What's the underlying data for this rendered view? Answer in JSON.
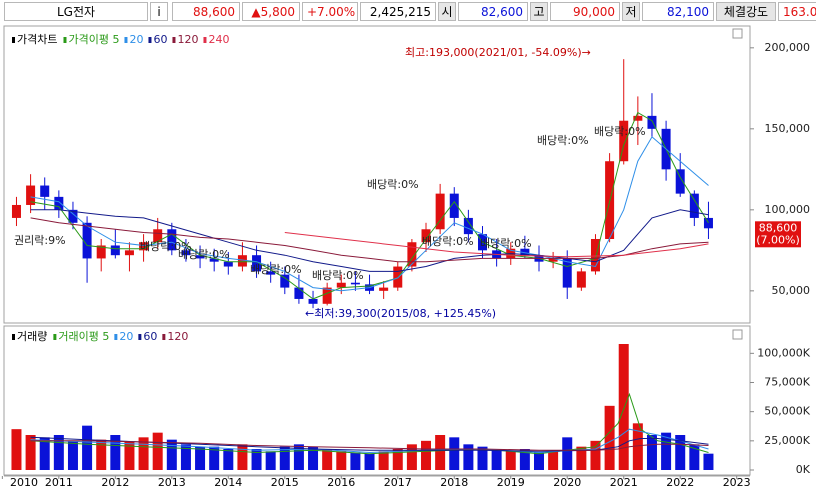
{
  "header": {
    "items": [
      "LG전자",
      "i",
      "88,600",
      "▲5,800",
      "+7.00%",
      "2,425,215",
      "시",
      "82,600",
      "고",
      "90,000",
      "저",
      "82,100",
      "체결강도",
      "163.0"
    ]
  },
  "chart_data": [
    {
      "type": "candlestick",
      "title": "가격차트",
      "up_color": "#e01010",
      "down_color": "#0a12d8",
      "xlim": [
        2010.1,
        2023.2
      ],
      "xticks": [
        2010,
        2011,
        2012,
        2013,
        2014,
        2015,
        2016,
        2017,
        2018,
        2019,
        2020,
        2021,
        2022,
        2023
      ],
      "ylim": [
        32000,
        211000
      ],
      "yticks": [
        {
          "value": 50000,
          "label": "50,000"
        },
        {
          "value": 100000,
          "label": "100,000"
        },
        {
          "value": 150000,
          "label": "150,000"
        },
        {
          "value": 200000,
          "label": "200,000"
        }
      ],
      "grid": false,
      "x": [
        2010.25,
        2010.5,
        2010.75,
        2011.0,
        2011.25,
        2011.5,
        2011.75,
        2012.0,
        2012.25,
        2012.5,
        2012.75,
        2013.0,
        2013.25,
        2013.5,
        2013.75,
        2014.0,
        2014.25,
        2014.5,
        2014.75,
        2015.0,
        2015.25,
        2015.5,
        2015.75,
        2016.0,
        2016.25,
        2016.5,
        2016.75,
        2017.0,
        2017.25,
        2017.5,
        2017.75,
        2018.0,
        2018.25,
        2018.5,
        2018.75,
        2019.0,
        2019.25,
        2019.5,
        2019.75,
        2020.0,
        2020.25,
        2020.5,
        2020.75,
        2021.0,
        2021.25,
        2021.5,
        2021.75,
        2022.0,
        2022.25,
        2022.5
      ],
      "open": [
        95000,
        103000,
        115000,
        108000,
        100000,
        92000,
        70000,
        78000,
        72000,
        75000,
        80000,
        88000,
        75000,
        72000,
        70000,
        68000,
        65000,
        72000,
        62000,
        60000,
        52000,
        45000,
        42000,
        52000,
        55000,
        54000,
        50000,
        52000,
        65000,
        80000,
        88000,
        110000,
        95000,
        85000,
        75000,
        70000,
        76000,
        72000,
        68000,
        70000,
        52000,
        62000,
        82000,
        130000,
        155000,
        158000,
        150000,
        125000,
        110000,
        95000
      ],
      "high": [
        108000,
        122000,
        120000,
        112000,
        105000,
        96000,
        82000,
        88000,
        80000,
        85000,
        95000,
        92000,
        82000,
        78000,
        76000,
        74000,
        80000,
        78000,
        68000,
        65000,
        60000,
        50000,
        55000,
        60000,
        62000,
        60000,
        56000,
        68000,
        82000,
        92000,
        116000,
        114000,
        100000,
        90000,
        82000,
        80000,
        84000,
        78000,
        74000,
        75000,
        64000,
        85000,
        135000,
        193000,
        170000,
        172000,
        155000,
        135000,
        112000,
        105000
      ],
      "low": [
        90000,
        98000,
        100000,
        95000,
        88000,
        55000,
        62000,
        70000,
        62000,
        68000,
        76000,
        72000,
        68000,
        64000,
        62000,
        60000,
        62000,
        58000,
        55000,
        48000,
        42000,
        39300,
        41000,
        48000,
        50000,
        48000,
        45000,
        50000,
        62000,
        74000,
        85000,
        90000,
        80000,
        70000,
        65000,
        66000,
        70000,
        62000,
        64000,
        45000,
        50000,
        60000,
        80000,
        128000,
        140000,
        145000,
        118000,
        108000,
        90000,
        82000
      ],
      "close": [
        103000,
        115000,
        108000,
        100000,
        92000,
        70000,
        78000,
        72000,
        75000,
        80000,
        88000,
        75000,
        72000,
        70000,
        68000,
        65000,
        72000,
        62000,
        60000,
        52000,
        45000,
        42000,
        52000,
        55000,
        54000,
        50000,
        52000,
        65000,
        80000,
        88000,
        110000,
        95000,
        85000,
        75000,
        70000,
        76000,
        72000,
        68000,
        70000,
        52000,
        62000,
        82000,
        130000,
        155000,
        158000,
        150000,
        125000,
        110000,
        95000,
        88600
      ],
      "series": [
        {
          "name": "가격이평 5",
          "color": "#2a9a18",
          "x": [
            2010.5,
            2011.0,
            2011.5,
            2012.0,
            2012.5,
            2013.0,
            2013.5,
            2014.0,
            2014.5,
            2015.0,
            2015.5,
            2016.0,
            2016.5,
            2017.0,
            2017.5,
            2018.0,
            2018.5,
            2019.0,
            2019.5,
            2020.0,
            2020.5,
            2021.0,
            2021.25,
            2021.5,
            2022.0,
            2022.5
          ],
          "values": [
            105000,
            102000,
            78000,
            76000,
            76000,
            85000,
            72000,
            68000,
            68000,
            58000,
            45000,
            52000,
            53000,
            58000,
            82000,
            105000,
            80000,
            72000,
            70000,
            65000,
            70000,
            140000,
            160000,
            155000,
            120000,
            92000
          ]
        },
        {
          "name": "20",
          "color": "#2f8fe8",
          "x": [
            2010.5,
            2011.0,
            2011.5,
            2012.0,
            2012.5,
            2013.0,
            2013.5,
            2014.0,
            2014.5,
            2015.0,
            2015.5,
            2016.0,
            2016.5,
            2017.0,
            2017.5,
            2018.0,
            2018.5,
            2019.0,
            2019.5,
            2020.0,
            2020.5,
            2021.0,
            2021.25,
            2021.5,
            2022.0,
            2022.5
          ],
          "values": [
            108000,
            105000,
            90000,
            80000,
            78000,
            80000,
            73000,
            70000,
            68000,
            62000,
            52000,
            50000,
            52000,
            58000,
            75000,
            92000,
            85000,
            75000,
            72000,
            68000,
            65000,
            100000,
            130000,
            145000,
            130000,
            115000
          ]
        },
        {
          "name": "60",
          "color": "#121a8a",
          "x": [
            2010.5,
            2011.0,
            2011.5,
            2012.0,
            2012.5,
            2013.0,
            2013.5,
            2014.0,
            2014.5,
            2015.0,
            2015.5,
            2016.0,
            2016.5,
            2017.0,
            2017.5,
            2018.0,
            2018.5,
            2019.0,
            2019.5,
            2020.0,
            2020.5,
            2021.0,
            2021.25,
            2021.5,
            2022.0,
            2022.5
          ],
          "values": [
            100000,
            100000,
            98000,
            96000,
            95000,
            90000,
            85000,
            80000,
            75000,
            72000,
            68000,
            65000,
            62000,
            62000,
            65000,
            70000,
            72000,
            73000,
            72000,
            70000,
            68000,
            75000,
            85000,
            95000,
            100000,
            97000
          ]
        },
        {
          "name": "120",
          "color": "#8a1a3a",
          "x": [
            2010.5,
            2011.0,
            2011.5,
            2012.0,
            2012.5,
            2013.0,
            2013.5,
            2014.0,
            2014.5,
            2015.0,
            2015.5,
            2016.0,
            2016.5,
            2017.0,
            2017.5,
            2018.0,
            2018.5,
            2019.0,
            2019.5,
            2020.0,
            2020.5,
            2021.0,
            2021.25,
            2021.5,
            2022.0,
            2022.5
          ],
          "values": [
            95000,
            92000,
            90000,
            88000,
            86000,
            85000,
            83000,
            82000,
            80000,
            78000,
            75000,
            72000,
            70000,
            68000,
            68000,
            69000,
            70000,
            70000,
            70000,
            70000,
            70000,
            72000,
            74000,
            76000,
            79000,
            80000
          ]
        },
        {
          "name": "240",
          "color": "#e0304a",
          "x": [
            2015.0,
            2016.0,
            2017.0,
            2018.0,
            2019.0,
            2020.0,
            2021.0,
            2022.0,
            2022.5
          ],
          "values": [
            86000,
            82000,
            78000,
            74000,
            72000,
            71000,
            72000,
            76000,
            79000
          ]
        }
      ],
      "last_label": "88,600",
      "last_change": "(7.00%)",
      "annotations": [
        "최고:193,000(2021/01, -54.09%)→",
        "←최저:39,300(2015/08, +125.45%)",
        "권리락:9%",
        "배당락:0%",
        "배당락:0%",
        "배당락:0%",
        "배당락:0%",
        "배당락:0%",
        "배당락:0%",
        "배당락:0%",
        "배당락:0%",
        "배당락:0%"
      ]
    },
    {
      "type": "bar",
      "title": "거래량",
      "xlim": [
        2010.1,
        2023.2
      ],
      "ylim": [
        0,
        120000
      ],
      "yticks": [
        {
          "value": 0,
          "label": "0K"
        },
        {
          "value": 25000,
          "label": "25,000K"
        },
        {
          "value": 50000,
          "label": "50,000K"
        },
        {
          "value": 75000,
          "label": "75,000K"
        },
        {
          "value": 100000,
          "label": "100,000K"
        }
      ],
      "x": [
        2010.25,
        2010.5,
        2010.75,
        2011.0,
        2011.25,
        2011.5,
        2011.75,
        2012.0,
        2012.25,
        2012.5,
        2012.75,
        2013.0,
        2013.25,
        2013.5,
        2013.75,
        2014.0,
        2014.25,
        2014.5,
        2014.75,
        2015.0,
        2015.25,
        2015.5,
        2015.75,
        2016.0,
        2016.25,
        2016.5,
        2016.75,
        2017.0,
        2017.25,
        2017.5,
        2017.75,
        2018.0,
        2018.25,
        2018.5,
        2018.75,
        2019.0,
        2019.25,
        2019.5,
        2019.75,
        2020.0,
        2020.25,
        2020.5,
        2020.75,
        2021.0,
        2021.25,
        2021.5,
        2021.75,
        2022.0,
        2022.25,
        2022.5
      ],
      "values": [
        35000,
        30000,
        28000,
        30000,
        25000,
        38000,
        26000,
        30000,
        24000,
        28000,
        32000,
        26000,
        22000,
        20000,
        20000,
        18000,
        22000,
        18000,
        16000,
        20000,
        22000,
        20000,
        18000,
        16000,
        15000,
        14000,
        16000,
        18000,
        22000,
        25000,
        30000,
        28000,
        22000,
        20000,
        18000,
        16000,
        18000,
        15000,
        16000,
        28000,
        20000,
        25000,
        55000,
        108000,
        40000,
        30000,
        32000,
        30000,
        22000,
        14000
      ],
      "series": [
        {
          "name": "거래이평 5",
          "color": "#2a9a18",
          "x": [
            2010.5,
            2011.5,
            2012.5,
            2013.5,
            2014.5,
            2015.5,
            2016.5,
            2017.5,
            2018.5,
            2019.5,
            2020.5,
            2020.9,
            2021.1,
            2021.3,
            2021.6,
            2022.0,
            2022.5
          ],
          "values": [
            25000,
            22000,
            20000,
            18000,
            15000,
            17000,
            14000,
            16000,
            18000,
            14000,
            20000,
            40000,
            65000,
            35000,
            25000,
            22000,
            15000
          ]
        },
        {
          "name": "20",
          "color": "#2f8fe8",
          "x": [
            2010.5,
            2011.5,
            2012.5,
            2013.5,
            2014.5,
            2015.5,
            2016.5,
            2017.5,
            2018.5,
            2019.5,
            2020.5,
            2020.9,
            2021.1,
            2021.3,
            2021.6,
            2022.0,
            2022.5
          ],
          "values": [
            26000,
            24000,
            22000,
            20000,
            17000,
            18000,
            15000,
            17000,
            18000,
            15000,
            18000,
            28000,
            35000,
            33000,
            30000,
            25000,
            18000
          ]
        },
        {
          "name": "60",
          "color": "#121a8a",
          "x": [
            2010.5,
            2011.5,
            2012.5,
            2013.5,
            2014.5,
            2015.5,
            2016.5,
            2017.5,
            2018.5,
            2019.5,
            2020.5,
            2020.9,
            2021.1,
            2021.3,
            2021.6,
            2022.0,
            2022.5
          ],
          "values": [
            28000,
            26000,
            24000,
            22000,
            20000,
            18000,
            17000,
            17000,
            17000,
            16000,
            17000,
            20000,
            25000,
            27000,
            27000,
            25000,
            22000
          ]
        },
        {
          "name": "120",
          "color": "#8a1a3a",
          "x": [
            2010.5,
            2011.5,
            2012.5,
            2013.5,
            2014.5,
            2015.5,
            2016.5,
            2017.5,
            2018.5,
            2019.5,
            2020.5,
            2020.9,
            2021.1,
            2021.3,
            2021.6,
            2022.0,
            2022.5
          ],
          "values": [
            25000,
            25000,
            24000,
            23000,
            21000,
            20000,
            19000,
            18000,
            18000,
            17000,
            17000,
            18000,
            20000,
            21000,
            22000,
            22000,
            21000
          ]
        }
      ]
    }
  ]
}
